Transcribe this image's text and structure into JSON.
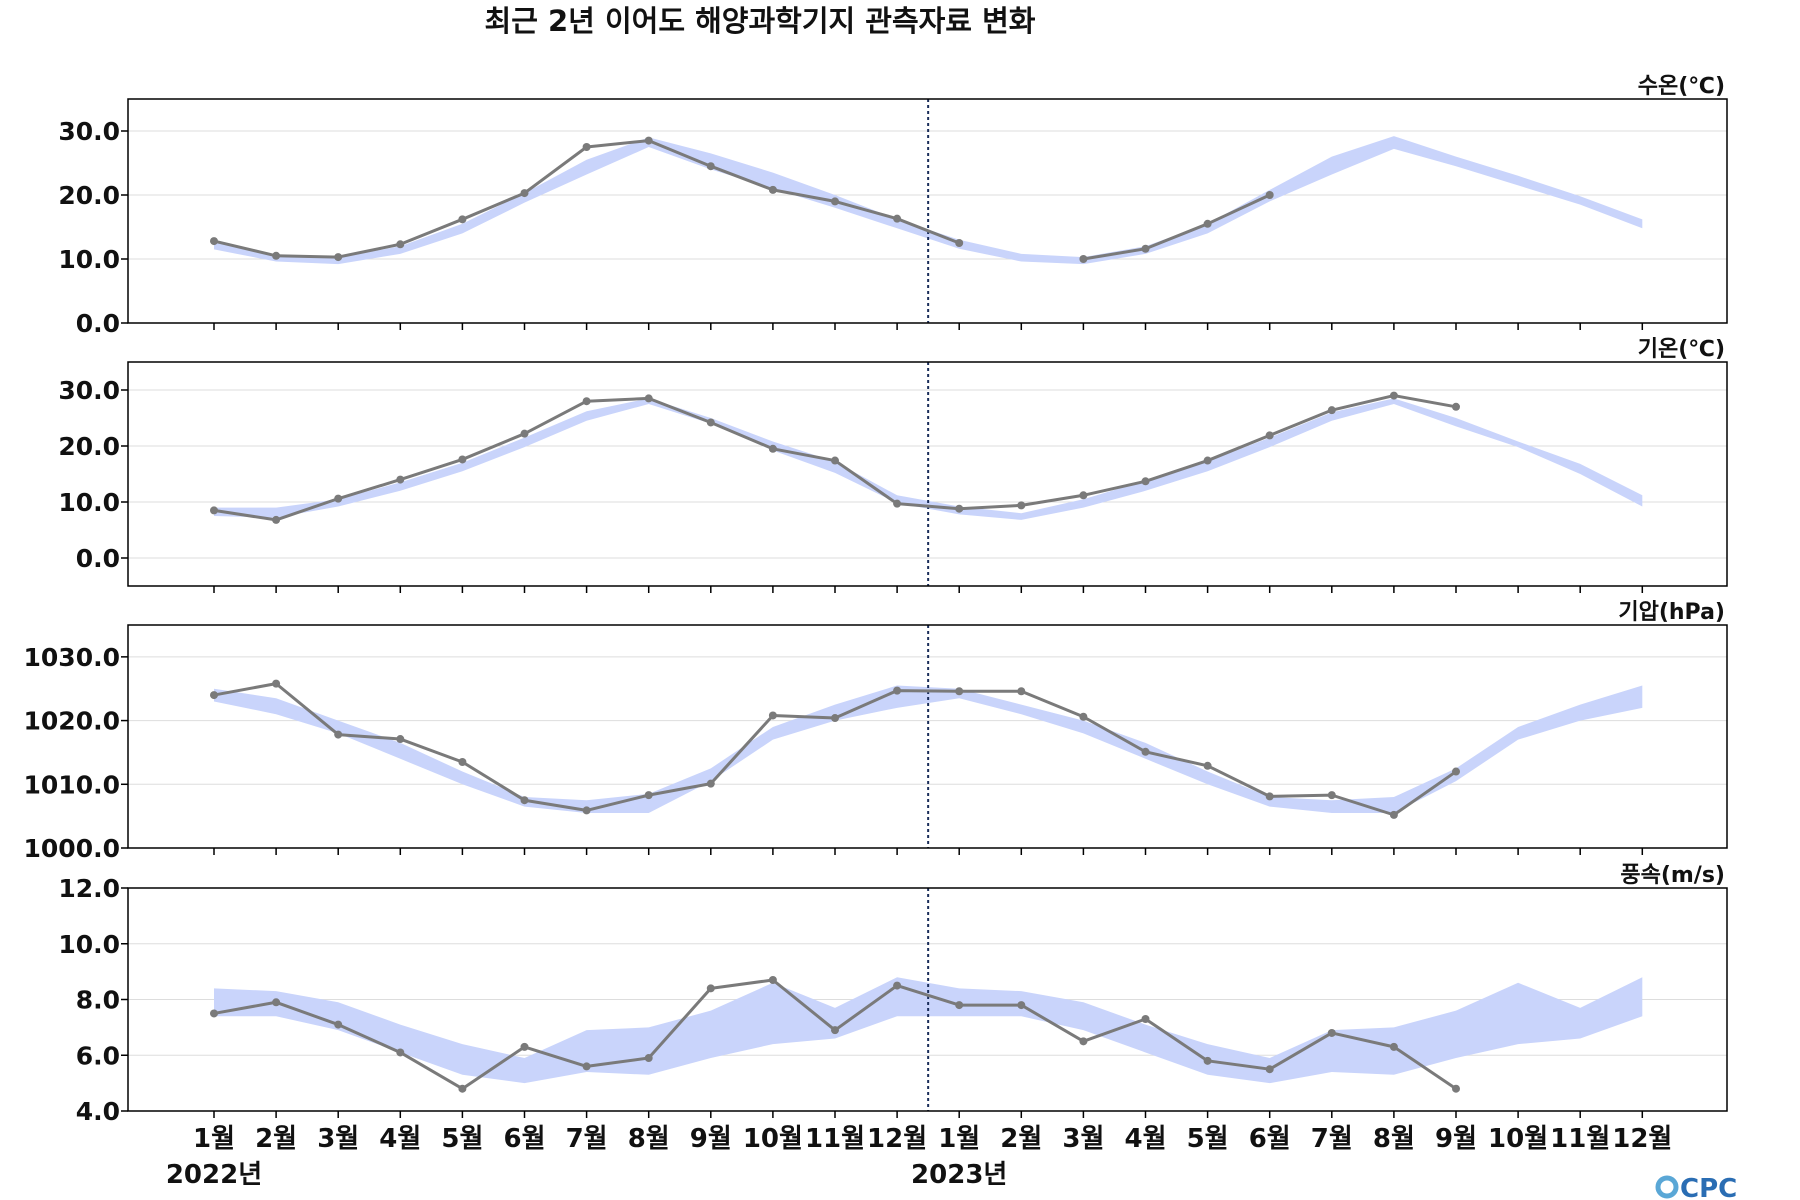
{
  "title": "최근 2년 이어도 해양과학기지 관측자료 변화",
  "logo": "OCPC",
  "colors": {
    "band": "#c9d4fb",
    "line": "#7a7a7a",
    "grid": "#dddddd",
    "divider": "#1a2d5a",
    "logo_o": "#5aa7d6",
    "logo_text": "#2a6db3"
  },
  "chart_data": {
    "type": "line",
    "x_tick_labels": [
      "1월",
      "2월",
      "3월",
      "4월",
      "5월",
      "6월",
      "7월",
      "8월",
      "9월",
      "10월",
      "11월",
      "12월",
      "1월",
      "2월",
      "3월",
      "4월",
      "5월",
      "6월",
      "7월",
      "8월",
      "9월",
      "10월",
      "11월",
      "12월"
    ],
    "year_labels": [
      {
        "label": "2022년",
        "month_index": 0
      },
      {
        "label": "2023년",
        "month_index": 12
      }
    ],
    "divider_between_month_index": [
      11,
      12
    ],
    "panels": [
      {
        "unit_label": "수온(℃)",
        "ylim": [
          0,
          35
        ],
        "yticks": [
          "0.0",
          "10.0",
          "20.0",
          "30.0"
        ],
        "ytick_values": [
          0,
          10,
          20,
          30
        ],
        "grid": true,
        "normal_band": {
          "upper": [
            12.8,
            10.6,
            10.2,
            12.0,
            15.5,
            20.3,
            25.5,
            29.0,
            26.5,
            23.5,
            20.0,
            16.2,
            13.0,
            10.8,
            10.3,
            12.0,
            15.5,
            20.8,
            26.0,
            29.2,
            26.0,
            23.0,
            19.8,
            16.2
          ],
          "lower": [
            11.5,
            9.6,
            9.2,
            10.8,
            14.0,
            18.8,
            23.2,
            27.5,
            24.0,
            21.0,
            18.0,
            14.8,
            11.6,
            9.6,
            9.2,
            10.8,
            14.0,
            19.0,
            23.2,
            27.2,
            24.5,
            21.5,
            18.5,
            14.8
          ]
        },
        "values": [
          12.8,
          10.5,
          10.3,
          12.3,
          16.2,
          20.3,
          27.5,
          28.5,
          24.5,
          20.8,
          19.0,
          16.3,
          12.5,
          null,
          10.0,
          11.6,
          15.5,
          20.0,
          null,
          null,
          null,
          null,
          null,
          null
        ]
      },
      {
        "unit_label": "기온(℃)",
        "ylim": [
          -5,
          35
        ],
        "yticks": [
          "0.0",
          "10.0",
          "20.0",
          "30.0"
        ],
        "ytick_values": [
          0,
          10,
          20,
          30
        ],
        "grid": true,
        "normal_band": {
          "upper": [
            9.0,
            9.0,
            10.5,
            13.5,
            17.0,
            21.5,
            26.2,
            28.5,
            25.0,
            20.8,
            17.2,
            11.2,
            9.2,
            8.0,
            10.5,
            13.8,
            17.2,
            21.5,
            26.0,
            28.5,
            25.0,
            20.8,
            16.8,
            11.2
          ],
          "lower": [
            7.5,
            7.2,
            9.2,
            12.0,
            15.5,
            19.8,
            24.5,
            27.5,
            24.0,
            19.2,
            15.2,
            9.8,
            7.8,
            6.8,
            9.0,
            12.0,
            15.5,
            19.8,
            24.5,
            27.5,
            23.5,
            19.8,
            15.0,
            9.2
          ]
        },
        "values": [
          8.5,
          6.8,
          10.6,
          14.0,
          17.6,
          22.2,
          28.0,
          28.5,
          24.2,
          19.5,
          17.4,
          9.7,
          8.8,
          9.4,
          11.2,
          13.7,
          17.4,
          21.9,
          26.4,
          29.0,
          27.0,
          null,
          null,
          null
        ]
      },
      {
        "unit_label": "기압(hPa)",
        "ylim": [
          1000,
          1035
        ],
        "yticks": [
          "1000.0",
          "1010.0",
          "1020.0",
          "1030.0"
        ],
        "ytick_values": [
          1000,
          1010,
          1020,
          1030
        ],
        "grid": true,
        "normal_band": {
          "upper": [
            1025.0,
            1023.5,
            1020.0,
            1016.5,
            1012.0,
            1008.0,
            1007.5,
            1008.5,
            1012.5,
            1019.0,
            1022.5,
            1025.5,
            1025.0,
            1022.5,
            1020.0,
            1016.5,
            1012.0,
            1008.0,
            1007.5,
            1008.0,
            1012.5,
            1019.0,
            1022.5,
            1025.5
          ],
          "lower": [
            1023.0,
            1021.0,
            1018.0,
            1014.0,
            1010.0,
            1006.5,
            1005.5,
            1005.5,
            1010.5,
            1017.0,
            1020.0,
            1022.0,
            1023.5,
            1021.0,
            1018.0,
            1014.0,
            1010.0,
            1006.5,
            1005.5,
            1005.5,
            1010.5,
            1017.0,
            1020.0,
            1022.0
          ]
        },
        "values": [
          1024.0,
          1025.8,
          1017.8,
          1017.1,
          1013.5,
          1007.5,
          1005.9,
          1008.3,
          1010.1,
          1020.8,
          1020.4,
          1024.7,
          1024.6,
          1024.6,
          1020.6,
          1015.1,
          1012.9,
          1008.1,
          1008.3,
          1005.2,
          1012.0,
          null,
          null,
          null
        ]
      },
      {
        "unit_label": "풍속(m/s)",
        "ylim": [
          4,
          12
        ],
        "yticks": [
          "4.0",
          "6.0",
          "8.0",
          "10.0",
          "12.0"
        ],
        "ytick_values": [
          4,
          6,
          8,
          10,
          12
        ],
        "grid": true,
        "normal_band": {
          "upper": [
            8.4,
            8.3,
            7.9,
            7.1,
            6.4,
            5.9,
            6.9,
            7.0,
            7.6,
            8.6,
            7.7,
            8.8,
            8.4,
            8.3,
            7.9,
            7.1,
            6.4,
            5.9,
            6.9,
            7.0,
            7.6,
            8.6,
            7.7,
            8.8
          ],
          "lower": [
            7.4,
            7.4,
            6.9,
            6.1,
            5.3,
            5.0,
            5.4,
            5.3,
            5.9,
            6.4,
            6.6,
            7.4,
            7.4,
            7.4,
            6.9,
            6.1,
            5.3,
            5.0,
            5.4,
            5.3,
            5.9,
            6.4,
            6.6,
            7.4
          ]
        },
        "values": [
          7.5,
          7.9,
          7.1,
          6.1,
          4.8,
          6.3,
          5.6,
          5.9,
          8.4,
          8.7,
          6.9,
          8.5,
          7.8,
          7.8,
          6.5,
          7.3,
          5.8,
          5.5,
          6.8,
          6.3,
          4.8,
          null,
          null,
          null
        ]
      }
    ]
  }
}
